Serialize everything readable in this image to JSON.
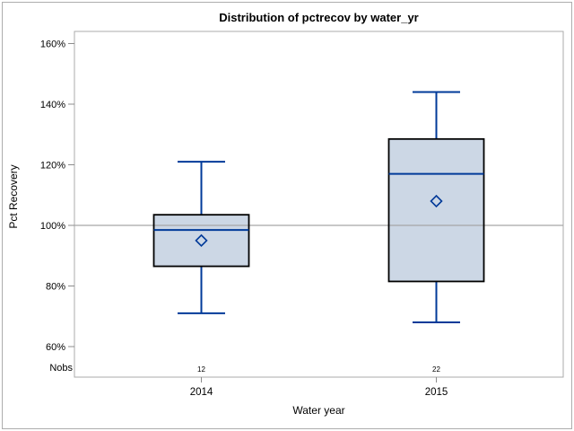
{
  "window": {
    "background": "#ffffff",
    "frame_color": "#adadad"
  },
  "chart_data": {
    "type": "boxplot",
    "title": "Distribution of pctrecov by water_yr",
    "xlabel": "Water year",
    "ylabel": "Pct Recovery",
    "nobs_label": "Nobs",
    "categories": [
      "2014",
      "2015"
    ],
    "nobs_values": [
      "12",
      "22"
    ],
    "yticks": [
      60,
      80,
      100,
      120,
      140,
      160
    ],
    "ytick_labels": [
      "60%",
      "80%",
      "100%",
      "120%",
      "140%",
      "160%"
    ],
    "ylim": [
      56,
      164
    ],
    "grid": false,
    "legend": false,
    "reference_line": 100,
    "series": [
      {
        "category": "2014",
        "n": 12,
        "whisker_low": 71,
        "q1": 86.5,
        "median": 98.5,
        "q3": 103.5,
        "whisker_high": 121,
        "mean": 95
      },
      {
        "category": "2015",
        "n": 22,
        "whisker_low": 68,
        "q1": 81.5,
        "median": 117,
        "q3": 128.5,
        "whisker_high": 144,
        "mean": 108
      }
    ],
    "colors": {
      "box_fill": "#ccd7e5",
      "box_border": "#000000",
      "line": "#003a99",
      "reference": "#a6a6a6",
      "frame": "#ababab",
      "tick": "#8c8c8c",
      "text": "#000000"
    }
  }
}
